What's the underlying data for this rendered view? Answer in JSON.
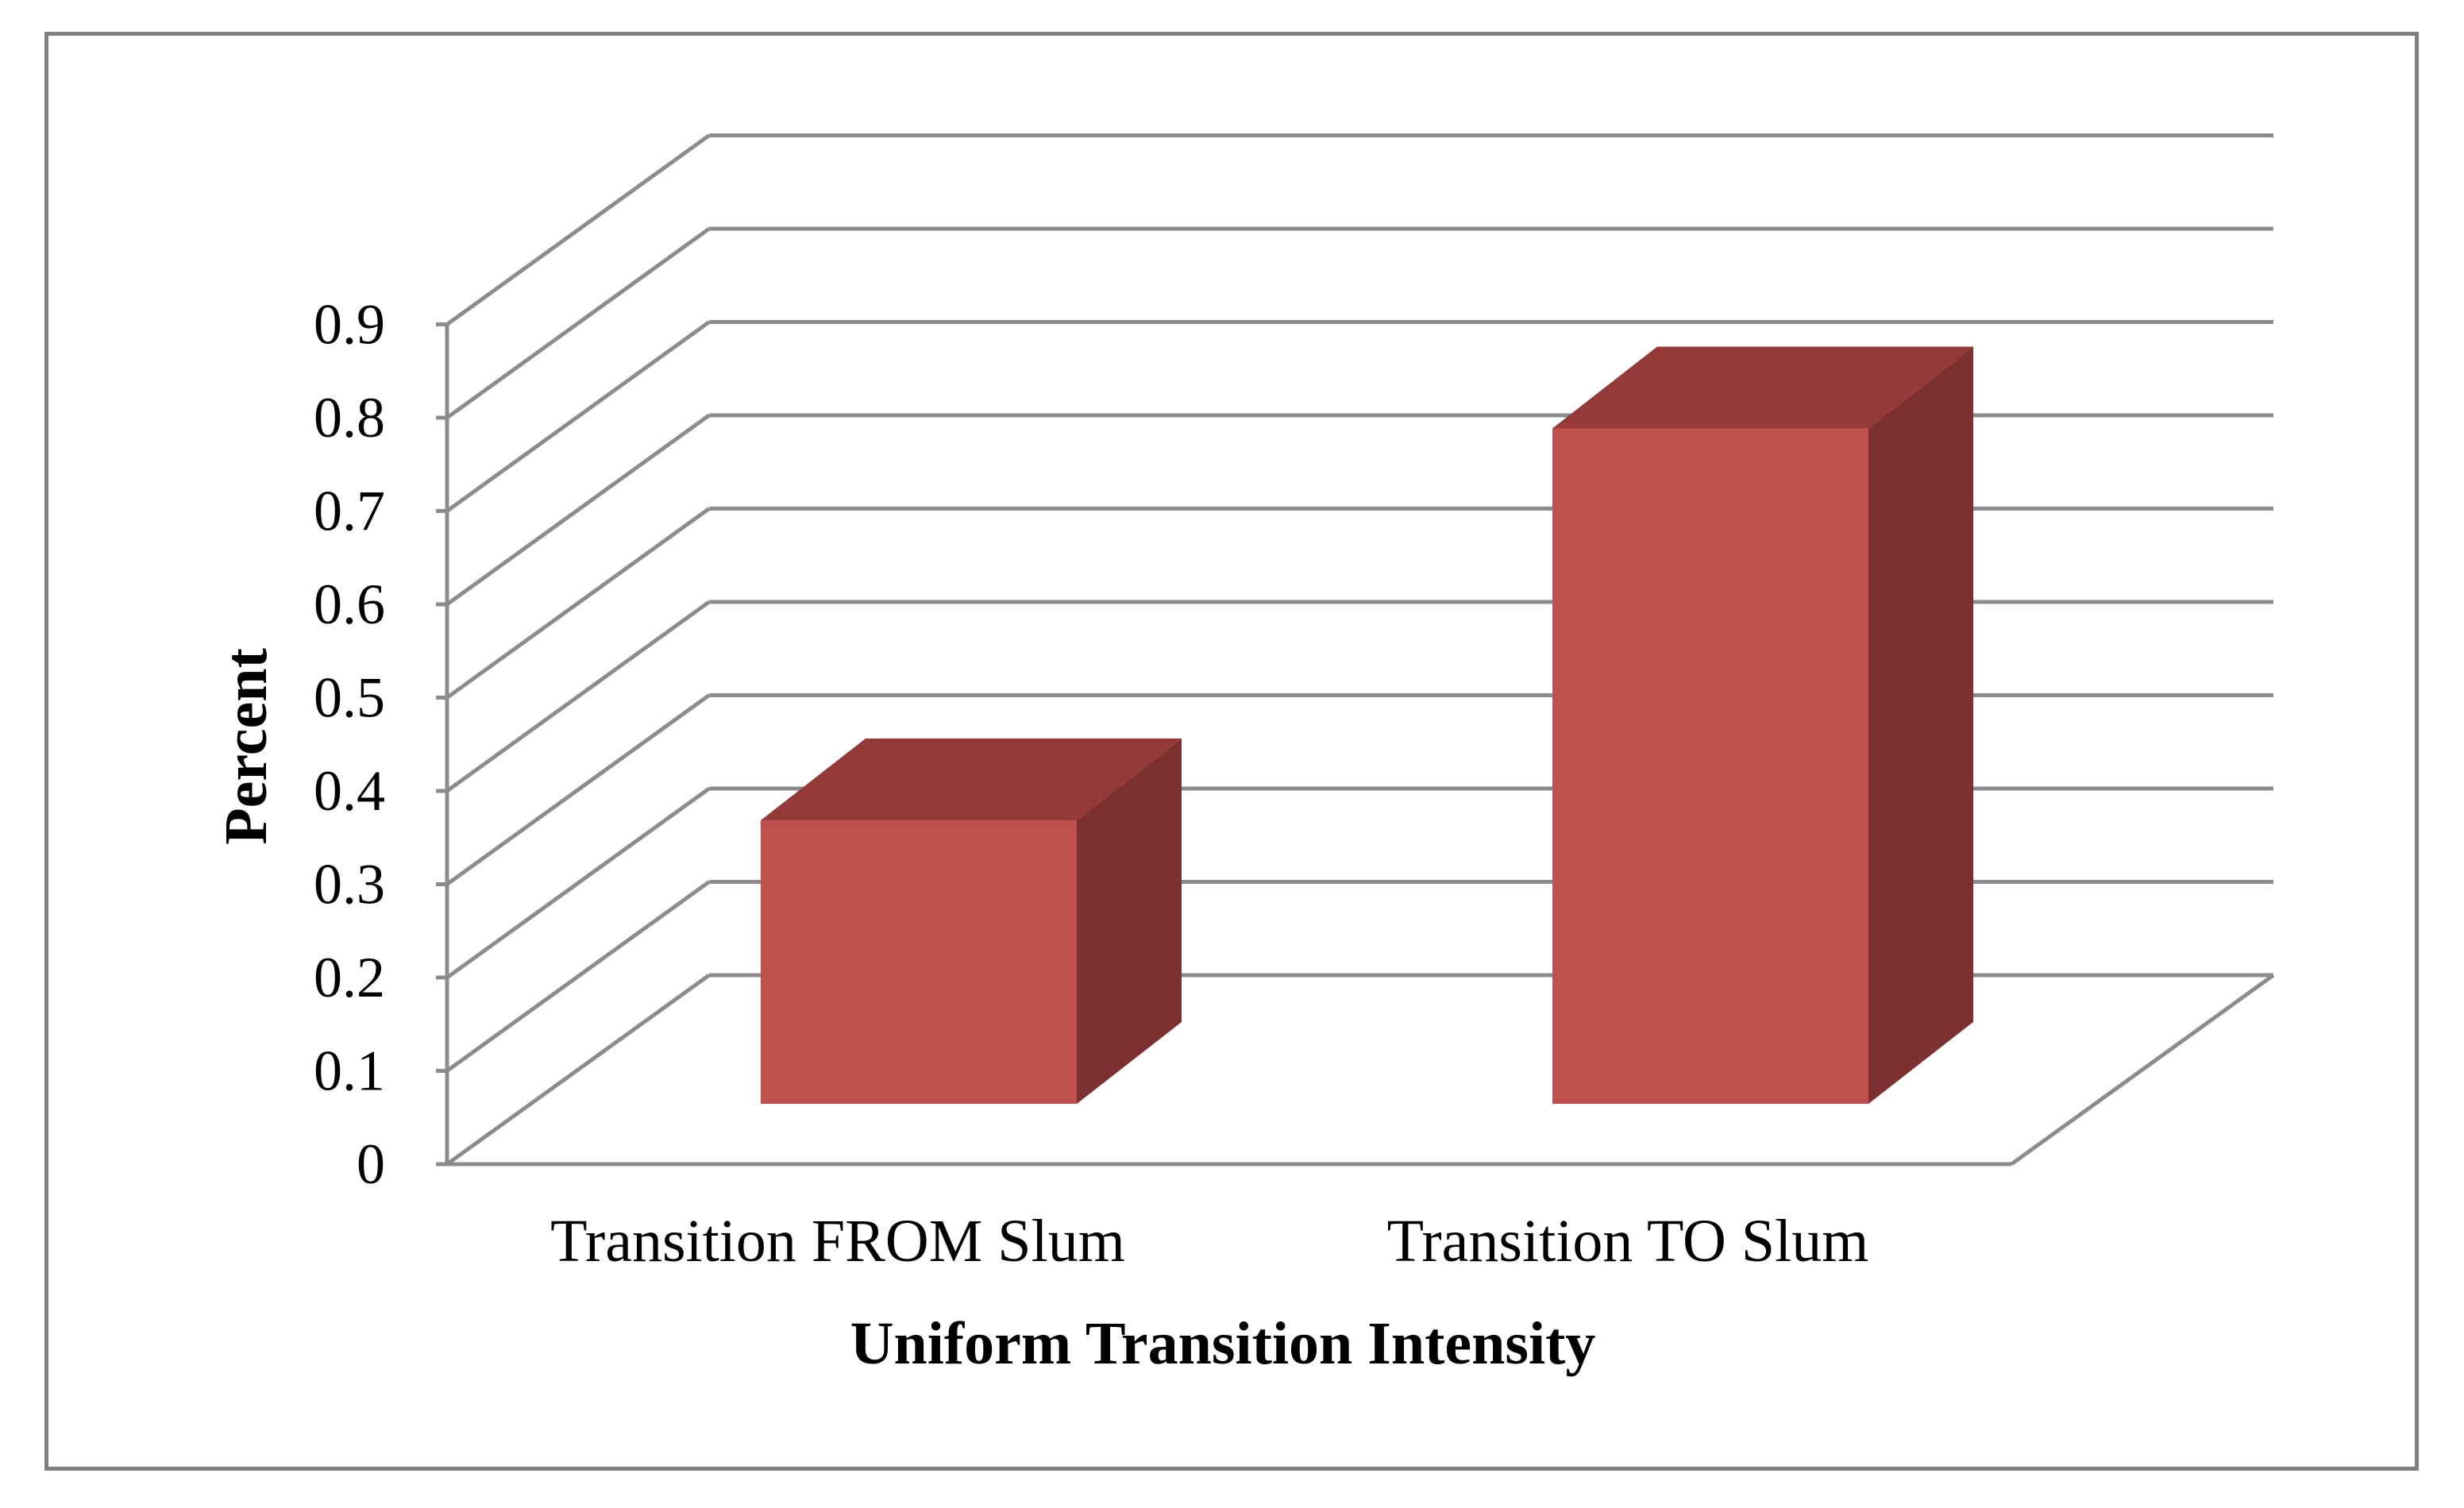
{
  "chart_data": {
    "type": "bar",
    "style": "3d",
    "categories": [
      "Transition FROM Slum",
      "Transition TO Slum"
    ],
    "values": [
      0.34,
      0.81
    ],
    "xlabel": "Uniform Transition Intensity",
    "ylabel": "Percent",
    "ylim": [
      0,
      0.9
    ],
    "yticks": [
      "0",
      "0.1",
      "0.2",
      "0.3",
      "0.4",
      "0.5",
      "0.6",
      "0.7",
      "0.8",
      "0.9"
    ],
    "grid": true,
    "legend": "none"
  },
  "colors": {
    "bar_front": "#c0504d",
    "bar_top": "#943a38",
    "bar_side": "#7c3030",
    "grid": "#8c8c8c",
    "frame": "#7f7f7f"
  }
}
